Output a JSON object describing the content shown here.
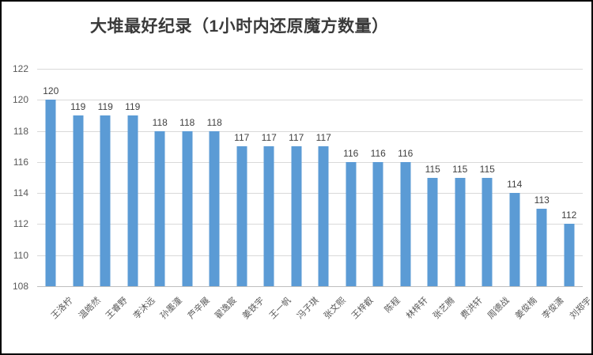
{
  "chart_data": {
    "type": "bar",
    "title": "大堆最好纪录（1小时内还原魔方数量）",
    "categories": [
      "王洛柠",
      "温皓然",
      "王睿野",
      "李沐远",
      "孙墨潼",
      "芦辛展",
      "翟逸宸",
      "姜铁宇",
      "王一帆",
      "冯子琪",
      "张文熙",
      "王梓叡",
      "陈程",
      "林梓轩",
      "张艺腾",
      "费洪轩",
      "周德战",
      "姜俊楠",
      "李俊潇",
      "刘郑宇"
    ],
    "values": [
      120,
      119,
      119,
      119,
      118,
      118,
      118,
      117,
      117,
      117,
      117,
      116,
      116,
      116,
      115,
      115,
      115,
      114,
      113,
      112
    ],
    "xlabel": "",
    "ylabel": "",
    "ylim": [
      108,
      122
    ],
    "y_ticks": [
      108,
      110,
      112,
      114,
      116,
      118,
      120,
      122
    ],
    "grid": true,
    "legend_position": "none",
    "data_labels": true
  },
  "colors": {
    "bar": "#5b9bd5",
    "gridline": "#d9d9d9",
    "axis_line": "#bfbfbf",
    "tick_text": "#595959",
    "value_text": "#404040",
    "title_text": "#3a3a3a",
    "frame_border": "#000000",
    "background": "#ffffff"
  }
}
